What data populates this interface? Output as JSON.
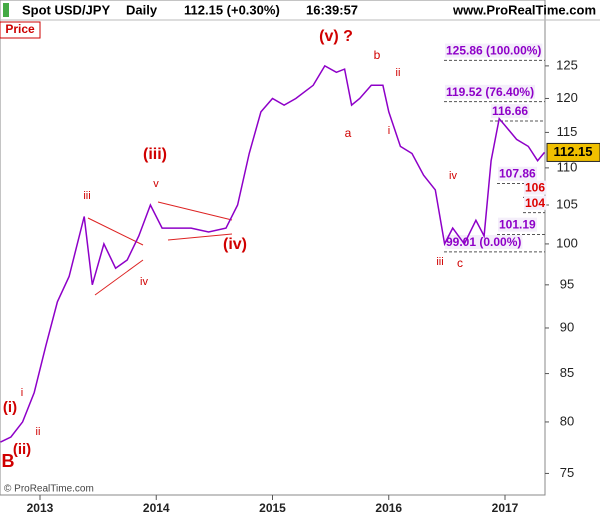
{
  "header": {
    "symbol": "Spot USD/JPY",
    "period": "Daily",
    "quote": "112.15 (+0.30%)",
    "time": "16:39:57",
    "site": "www.ProRealTime.com"
  },
  "panel_label": "Price",
  "copyright": "© ProRealTime.com",
  "chart_data": {
    "type": "line",
    "log_scale": true,
    "x": [
      2012.66,
      2012.75,
      2012.85,
      2012.95,
      2013.05,
      2013.15,
      2013.25,
      2013.38,
      2013.45,
      2013.55,
      2013.65,
      2013.75,
      2013.85,
      2013.95,
      2014.05,
      2014.15,
      2014.3,
      2014.45,
      2014.6,
      2014.7,
      2014.8,
      2014.9,
      2015.0,
      2015.1,
      2015.2,
      2015.35,
      2015.45,
      2015.55,
      2015.62,
      2015.68,
      2015.75,
      2015.85,
      2015.95,
      2016.0,
      2016.1,
      2016.2,
      2016.3,
      2016.4,
      2016.48,
      2016.55,
      2016.65,
      2016.75,
      2016.82,
      2016.88,
      2016.95,
      2017.0,
      2017.1,
      2017.2,
      2017.28,
      2017.34
    ],
    "series": [
      {
        "name": "Spot USD/JPY",
        "color": "#8e00c8",
        "values": [
          78,
          78.5,
          80,
          83,
          88,
          93,
          96,
          103.5,
          95,
          100,
          97,
          98,
          101,
          105,
          102,
          102,
          102,
          101.5,
          102,
          105,
          112,
          118,
          120,
          119,
          120,
          122,
          125,
          124,
          124.5,
          119,
          120,
          122,
          122,
          118,
          113,
          112,
          109,
          107,
          100,
          102,
          100,
          103,
          101,
          111,
          117,
          116,
          114,
          113,
          111,
          112.15
        ]
      }
    ],
    "xlim": [
      2012.656,
      2017.344
    ],
    "xticks": [
      2013,
      2014,
      2015,
      2016,
      2017
    ],
    "ylim": [
      73,
      132.4
    ],
    "yticks": [
      75,
      80,
      85,
      90,
      95,
      100,
      105,
      110,
      115,
      120,
      125
    ],
    "last_price": 112.15,
    "levels": [
      {
        "value": 125.86,
        "label": "125.86 (100.00%)"
      },
      {
        "value": 119.52,
        "label": "119.52 (76.40%)"
      },
      {
        "value": 116.66,
        "label": "116.66"
      },
      {
        "value": 107.86,
        "label": "107.86"
      },
      {
        "value": 106,
        "label": "106"
      },
      {
        "value": 104,
        "label": "104"
      },
      {
        "value": 101.19,
        "label": "101.19"
      },
      {
        "value": 99.01,
        "label": "99.01 (0.00%)"
      }
    ],
    "annotations": [
      "(v) ?",
      "b",
      "ii",
      "a",
      "i",
      "iv",
      "iii",
      "c",
      "(iii)",
      "v",
      "(iv)",
      "iii",
      "iv",
      "(i)",
      "i",
      "ii",
      "(ii)",
      "B"
    ]
  }
}
